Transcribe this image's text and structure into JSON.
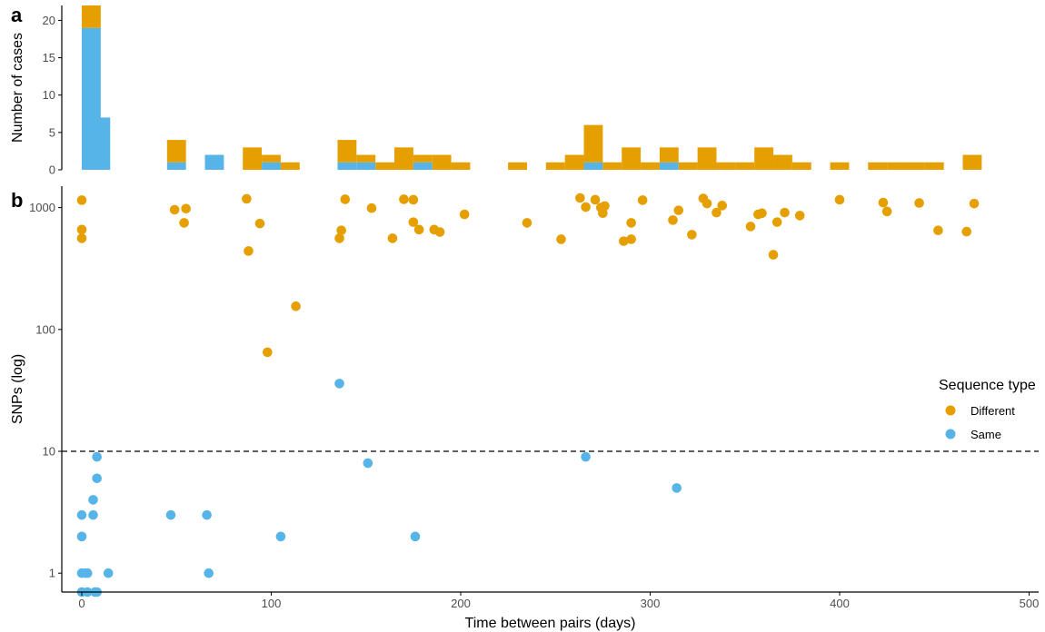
{
  "chart_data": [
    {
      "panel": "a",
      "type": "bar",
      "stacked": true,
      "bin_width": 10,
      "xlabel": "",
      "ylabel": "Number of cases",
      "ylim": [
        0,
        22
      ],
      "yticks": [
        0,
        5,
        10,
        15,
        20
      ],
      "bins": [
        {
          "x0": 0,
          "same": 19,
          "different": 3
        },
        {
          "x0": 5,
          "same": 7,
          "different": 0
        },
        {
          "x0": 45,
          "same": 1,
          "different": 3
        },
        {
          "x0": 65,
          "same": 2,
          "different": 0
        },
        {
          "x0": 85,
          "same": 0,
          "different": 3
        },
        {
          "x0": 95,
          "same": 1,
          "different": 1
        },
        {
          "x0": 105,
          "same": 0,
          "different": 1
        },
        {
          "x0": 135,
          "same": 1,
          "different": 3
        },
        {
          "x0": 145,
          "same": 1,
          "different": 1
        },
        {
          "x0": 155,
          "same": 0,
          "different": 1
        },
        {
          "x0": 165,
          "same": 0,
          "different": 3
        },
        {
          "x0": 175,
          "same": 1,
          "different": 1
        },
        {
          "x0": 185,
          "same": 0,
          "different": 2
        },
        {
          "x0": 195,
          "same": 0,
          "different": 1
        },
        {
          "x0": 225,
          "same": 0,
          "different": 1
        },
        {
          "x0": 245,
          "same": 0,
          "different": 1
        },
        {
          "x0": 255,
          "same": 0,
          "different": 2
        },
        {
          "x0": 265,
          "same": 1,
          "different": 5
        },
        {
          "x0": 275,
          "same": 0,
          "different": 1
        },
        {
          "x0": 285,
          "same": 0,
          "different": 3
        },
        {
          "x0": 295,
          "same": 0,
          "different": 1
        },
        {
          "x0": 305,
          "same": 1,
          "different": 2
        },
        {
          "x0": 315,
          "same": 0,
          "different": 1
        },
        {
          "x0": 325,
          "same": 0,
          "different": 3
        },
        {
          "x0": 335,
          "same": 0,
          "different": 1
        },
        {
          "x0": 345,
          "same": 0,
          "different": 1
        },
        {
          "x0": 355,
          "same": 0,
          "different": 3
        },
        {
          "x0": 365,
          "same": 0,
          "different": 2
        },
        {
          "x0": 375,
          "same": 0,
          "different": 1
        },
        {
          "x0": 395,
          "same": 0,
          "different": 1
        },
        {
          "x0": 415,
          "same": 0,
          "different": 1
        },
        {
          "x0": 425,
          "same": 0,
          "different": 1
        },
        {
          "x0": 435,
          "same": 0,
          "different": 1
        },
        {
          "x0": 445,
          "same": 0,
          "different": 1
        },
        {
          "x0": 465,
          "same": 0,
          "different": 2
        }
      ]
    },
    {
      "panel": "b",
      "type": "scatter",
      "xlabel": "Time between pairs (days)",
      "ylabel": "SNPs (log)",
      "y_scale": "log",
      "xlim": [
        -5,
        505
      ],
      "ylim": [
        0.7,
        1500
      ],
      "xticks": [
        0,
        100,
        200,
        300,
        400,
        500
      ],
      "yticks": [
        1,
        10,
        100,
        1000
      ],
      "threshold": 10,
      "legend": {
        "title": "Sequence type",
        "position": "right",
        "entries": [
          {
            "label": "Different",
            "color": "#E69F00"
          },
          {
            "label": "Same",
            "color": "#56B4E9"
          }
        ]
      },
      "series": [
        {
          "name": "Different",
          "color": "#E69F00",
          "points": [
            [
              0,
              1150
            ],
            [
              0,
              660
            ],
            [
              0,
              560
            ],
            [
              49,
              960
            ],
            [
              54,
              750
            ],
            [
              55,
              980
            ],
            [
              87,
              1180
            ],
            [
              88,
              440
            ],
            [
              94,
              740
            ],
            [
              98,
              65
            ],
            [
              113,
              155
            ],
            [
              136,
              560
            ],
            [
              137,
              650
            ],
            [
              139,
              1170
            ],
            [
              153,
              990
            ],
            [
              164,
              560
            ],
            [
              170,
              1170
            ],
            [
              175,
              1160
            ],
            [
              175,
              760
            ],
            [
              178,
              660
            ],
            [
              186,
              660
            ],
            [
              189,
              630
            ],
            [
              202,
              880
            ],
            [
              235,
              750
            ],
            [
              253,
              550
            ],
            [
              263,
              1200
            ],
            [
              266,
              1010
            ],
            [
              271,
              1160
            ],
            [
              274,
              1000
            ],
            [
              275,
              900
            ],
            [
              276,
              1030
            ],
            [
              286,
              530
            ],
            [
              290,
              750
            ],
            [
              290,
              550
            ],
            [
              296,
              1150
            ],
            [
              312,
              790
            ],
            [
              315,
              950
            ],
            [
              322,
              600
            ],
            [
              328,
              1190
            ],
            [
              330,
              1080
            ],
            [
              335,
              910
            ],
            [
              338,
              1040
            ],
            [
              353,
              700
            ],
            [
              357,
              880
            ],
            [
              359,
              900
            ],
            [
              365,
              410
            ],
            [
              367,
              760
            ],
            [
              371,
              910
            ],
            [
              379,
              860
            ],
            [
              400,
              1160
            ],
            [
              423,
              1100
            ],
            [
              425,
              930
            ],
            [
              442,
              1090
            ],
            [
              452,
              650
            ],
            [
              467,
              635
            ],
            [
              471,
              1080
            ]
          ]
        },
        {
          "name": "Same",
          "color": "#56B4E9",
          "points": [
            [
              0,
              3
            ],
            [
              0,
              2
            ],
            [
              0,
              1
            ],
            [
              0,
              0.7
            ],
            [
              2,
              1
            ],
            [
              3,
              1
            ],
            [
              3,
              0.7
            ],
            [
              6,
              4
            ],
            [
              6,
              3
            ],
            [
              7,
              0.7
            ],
            [
              8,
              0.7
            ],
            [
              8,
              9
            ],
            [
              8,
              6
            ],
            [
              14,
              1
            ],
            [
              47,
              3
            ],
            [
              66,
              3
            ],
            [
              67,
              1
            ],
            [
              105,
              2
            ],
            [
              136,
              36
            ],
            [
              151,
              8
            ],
            [
              176,
              2
            ],
            [
              266,
              9
            ],
            [
              314,
              5
            ]
          ]
        }
      ]
    }
  ]
}
